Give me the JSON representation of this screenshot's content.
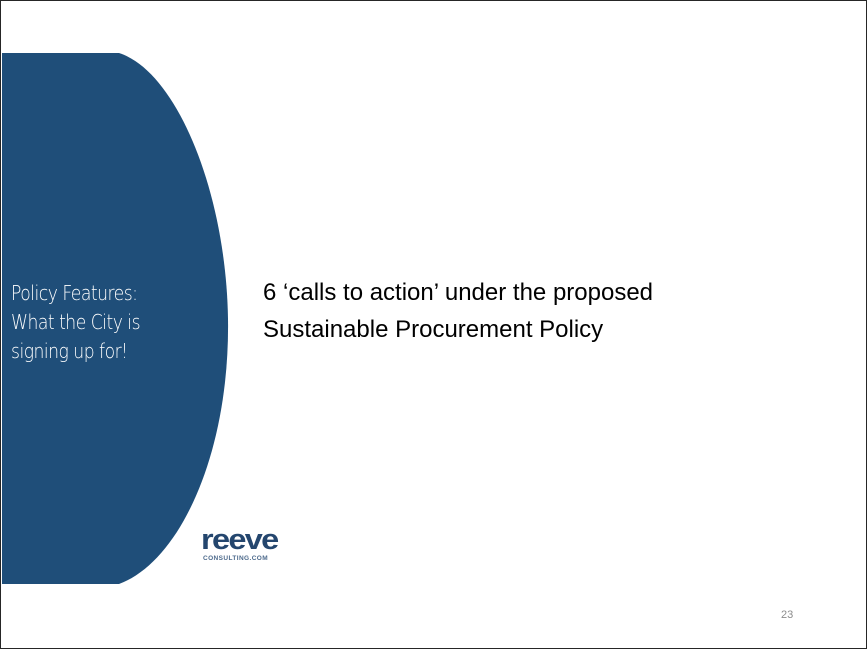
{
  "slide": {
    "side_title_lines": [
      "Policy Features:",
      "What the City is",
      "signing up for!"
    ],
    "body_lines": [
      "6 ‘calls to action’ under the proposed",
      "Sustainable Procurement Policy"
    ],
    "slide_number": "23"
  },
  "logo": {
    "word": "reeve",
    "subtext": "CONSULTING.COM"
  },
  "colors": {
    "side_panel": "#1f4e79",
    "logo": "#24466e",
    "border": "#262626"
  }
}
